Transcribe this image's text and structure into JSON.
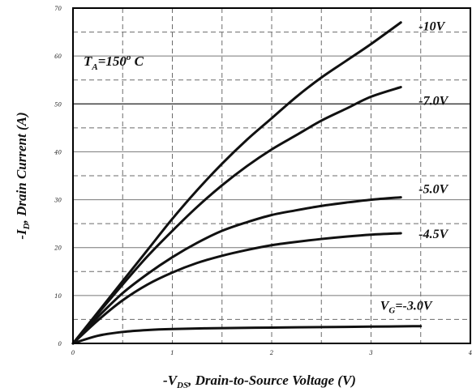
{
  "chart_data": {
    "type": "line",
    "xlabel": "-V",
    "xlabel_sub": "DS",
    "xlabel_rest": ", Drain-to-Source Voltage (V)",
    "ylabel_pre": "-I",
    "ylabel_sub": "D",
    "ylabel_rest": ", Drain Current (A)",
    "annotation": {
      "text_pre": "T",
      "text_sub": "A",
      "text_mid": "=150",
      "text_sup": "o",
      "text_post": " C"
    },
    "xlim": [
      0,
      4
    ],
    "ylim": [
      0,
      70
    ],
    "x_ticks": [
      "0",
      "1",
      "2",
      "3",
      "4"
    ],
    "y_ticks": [
      "0",
      "10",
      "20",
      "30",
      "40",
      "50",
      "60",
      "70"
    ],
    "series": [
      {
        "name": "-10V",
        "x": [
          0,
          0.25,
          0.5,
          0.75,
          1.0,
          1.25,
          1.5,
          1.75,
          2.0,
          2.25,
          2.5,
          2.75,
          3.0,
          3.3
        ],
        "y": [
          0,
          6.5,
          13,
          19.5,
          26,
          32,
          37.5,
          42.5,
          47,
          51.5,
          55.5,
          59,
          62.5,
          67
        ]
      },
      {
        "name": "-7.0V",
        "x": [
          0,
          0.25,
          0.5,
          0.75,
          1.0,
          1.25,
          1.5,
          1.75,
          2.0,
          2.25,
          2.5,
          2.75,
          3.0,
          3.3
        ],
        "y": [
          0,
          6.2,
          12.3,
          18.2,
          23.5,
          28.5,
          33,
          37,
          40.5,
          43.5,
          46.5,
          49,
          51.5,
          53.5
        ]
      },
      {
        "name": "-5.0V",
        "x": [
          0,
          0.25,
          0.5,
          0.75,
          1.0,
          1.25,
          1.5,
          1.75,
          2.0,
          2.25,
          2.5,
          2.75,
          3.0,
          3.3
        ],
        "y": [
          0,
          5.5,
          10.5,
          14.5,
          18,
          21,
          23.5,
          25.3,
          26.8,
          27.8,
          28.7,
          29.4,
          30,
          30.5
        ]
      },
      {
        "name": "-4.5V",
        "x": [
          0,
          0.25,
          0.5,
          0.75,
          1.0,
          1.25,
          1.5,
          1.75,
          2.0,
          2.25,
          2.5,
          2.75,
          3.0,
          3.3
        ],
        "y": [
          0,
          4.8,
          9,
          12.3,
          14.8,
          16.8,
          18.3,
          19.5,
          20.5,
          21.2,
          21.8,
          22.3,
          22.7,
          23
        ]
      },
      {
        "name": "VG=-3.0V",
        "x": [
          0,
          0.25,
          0.5,
          0.75,
          1.0,
          1.5,
          2.0,
          2.5,
          3.0,
          3.5
        ],
        "y": [
          0,
          1.6,
          2.4,
          2.8,
          3.0,
          3.2,
          3.3,
          3.4,
          3.5,
          3.6
        ]
      }
    ],
    "curve_labels": [
      {
        "text": "-10V",
        "anchor_series": 0
      },
      {
        "text": "-7.0V",
        "anchor_series": 1
      },
      {
        "text": "-5.0V",
        "anchor_series": 2
      },
      {
        "text": "-4.5V",
        "anchor_series": 3
      },
      {
        "text_pre": "V",
        "text_sub": "G",
        "text_post": "=-3.0V",
        "anchor_series": 4
      }
    ],
    "grid": true,
    "legend": "none"
  }
}
